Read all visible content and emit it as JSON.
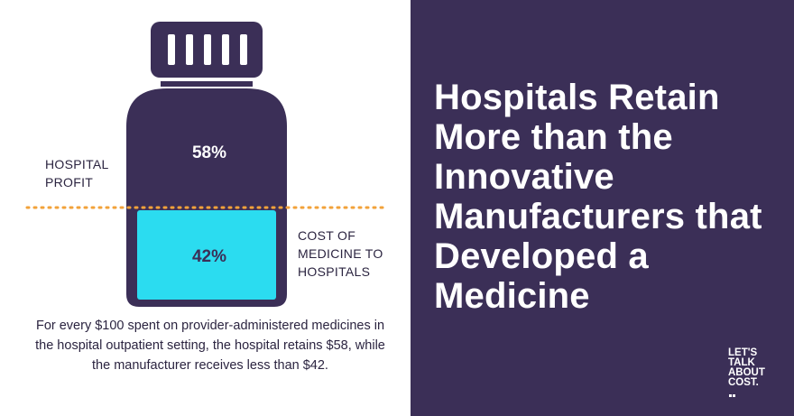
{
  "colors": {
    "navy": "#3b2f57",
    "cyan": "#2bdcf0",
    "dotted_line": "#f2a23a",
    "text_dark": "#2b2440",
    "white": "#ffffff"
  },
  "chart_data": {
    "type": "bar",
    "categories": [
      "HOSPITAL PROFIT",
      "COST OF MEDICINE TO HOSPITALS"
    ],
    "values": [
      58,
      42
    ],
    "labels": [
      "58%",
      "42%"
    ]
  },
  "labels": {
    "hospital_profit": "HOSPITAL PROFIT",
    "cost_of_medicine": "COST OF MEDICINE TO HOSPITALS"
  },
  "caption": "For every $100 spent on provider-administered medicines in the hospital outpatient setting, the hospital retains $58, while the manufacturer receives less than $42.",
  "headline": "Hospitals Retain More than the Innovative Manufacturers that Developed a Medicine",
  "logo": {
    "lines": [
      "LET'S",
      "TALK",
      "ABOUT",
      "COST."
    ]
  }
}
